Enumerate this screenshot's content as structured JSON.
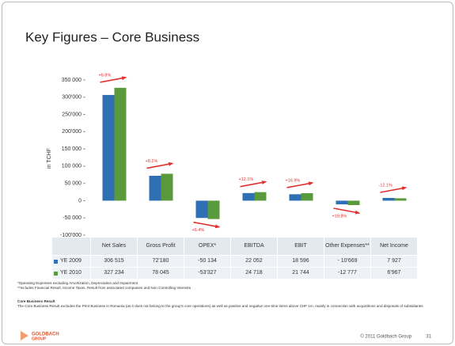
{
  "chart_data": {
    "type": "bar",
    "title": "Key Figures – Core Business",
    "y_label": "in TCHF",
    "categories": [
      "Net Sales",
      "Gross Profit",
      "OPEX*",
      "EBITDA",
      "EBIT",
      "Other Expenses**",
      "Net Income"
    ],
    "series": [
      {
        "name": "YE 2009",
        "color": "#2f6fb3",
        "values": [
          306515,
          72180,
          -50134,
          22052,
          18596,
          -10669,
          7927
        ],
        "value_labels": [
          "306 515",
          "72'180",
          "-50 134",
          "22 052",
          "18 596",
          "- 10'669",
          "7 927"
        ]
      },
      {
        "name": "YE 2010",
        "color": "#5b9a3c",
        "values": [
          327234,
          78045,
          -53327,
          24718,
          21744,
          -12777,
          6967
        ],
        "value_labels": [
          "327 234",
          "78 045",
          "-53'327",
          "24 718",
          "21 744",
          "-12 777",
          "6'967"
        ]
      }
    ],
    "annotations": [
      "+6.8%",
      "+8.1%",
      "+6.4%",
      "+12.1%",
      "+16.9%",
      "+19.8%",
      "-12.1%"
    ],
    "annotation_color": "#e0312f",
    "ylim": [
      -100000,
      350000
    ],
    "yticks": [
      {
        "value": -100000,
        "label": "-100'000"
      },
      {
        "value": -50000,
        "label": "-50 000"
      },
      0,
      {
        "value": 50000,
        "label": "50 000"
      },
      {
        "value": 100000,
        "label": "100 000"
      },
      {
        "value": 150000,
        "label": "150 000"
      },
      {
        "value": 200000,
        "label": "200'000"
      },
      {
        "value": 250000,
        "label": "250'000"
      },
      {
        "value": 300000,
        "label": "300'000"
      },
      {
        "value": 350000,
        "label": "350 000"
      }
    ],
    "grid": false
  },
  "footnotes": [
    "*Operating Expenses excluding Amortization, Depreciation and Impairment",
    "**Includes Financial Result, Income Taxes, Result from associated companies and Non Controlling Interests"
  ],
  "core_result": {
    "heading": "Core Business Result",
    "text": "The Core Business Result excludes the Print Business in Romania (as it does not belong to the group's core operations) as well as positive and negative one-time items above CHF 1m, mainly in connection with acquisitions and disposals of subsidiaries"
  },
  "footer": {
    "logo_top": "GOLDBACH",
    "logo_bottom": "GROUP",
    "copyright": "© 2011 Goldbach Group",
    "page": "31"
  }
}
